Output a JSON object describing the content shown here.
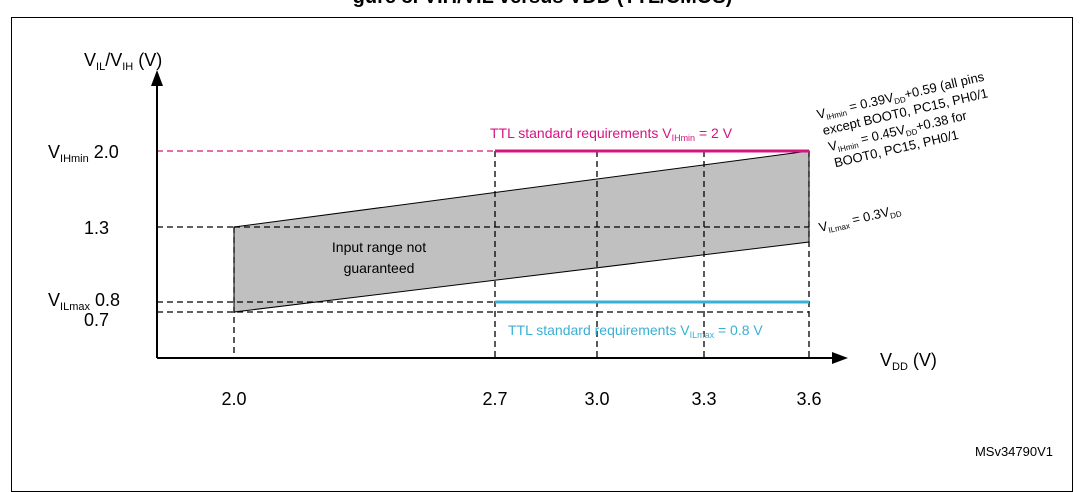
{
  "figure": {
    "caption": "gure 8. VIH/VIL versus VDD (TTL/CMOS)",
    "id_label": "MSv34790V1"
  },
  "colors": {
    "vih_line": "#d4147f",
    "vil_line": "#3ab0d4",
    "region_fill": "#c0c0c0",
    "axis": "#000000"
  },
  "chart_data": {
    "type": "area",
    "x_axis": {
      "label_main": "V",
      "label_sub": "DD",
      "label_unit": " (V)",
      "ticks": [
        2.0,
        2.7,
        3.0,
        3.3,
        3.6
      ],
      "tick_labels": [
        "2.0",
        "2.7",
        "3.0",
        "3.3",
        "3.6"
      ],
      "range": [
        1.15,
        3.75
      ]
    },
    "y_axis": {
      "label": "VIL/VIH (V)",
      "ticks": [
        2.0,
        1.3,
        0.8,
        0.7
      ],
      "tick_labels": [
        "VIHmin 2.0",
        "1.3",
        "VILmax 0.8",
        "0.7"
      ],
      "range": [
        0.28,
        2.5
      ]
    },
    "region": {
      "name": "Input range not guaranteed",
      "upper_x": [
        2.0,
        3.6
      ],
      "upper_y": [
        1.3,
        2.0
      ],
      "lower_x": [
        2.0,
        3.6
      ],
      "lower_y": [
        0.7,
        1.2
      ]
    },
    "series": [
      {
        "name": "TTL standard requirements VIHmin = 2 V",
        "x": [
          2.7,
          3.6
        ],
        "y": [
          2.0,
          2.0
        ]
      },
      {
        "name": "TTL standard requirements VILmax = 0.8 V",
        "x": [
          2.7,
          3.6
        ],
        "y": [
          0.8,
          0.8
        ]
      }
    ],
    "annotations": [
      "VIHmin = 0.39VDD+0.59 (all pins except BOOT0, PC15, PH0/1",
      "VIHmin = 0.45VDD+0.38 for BOOT0, PC15, PH0/1",
      "VILmax = 0.3VDD"
    ],
    "grid": false
  },
  "labels": {
    "y_axis_main": [
      "V",
      "IL",
      "/V",
      "IH",
      " (V)"
    ],
    "y_tick_vih": [
      "V",
      "IHmin",
      " 2.0"
    ],
    "y_tick_13": "1.3",
    "y_tick_vil": [
      "V",
      "ILmax",
      " 0.8"
    ],
    "y_tick_07": "0.7",
    "region_text": [
      "Input range not",
      "guaranteed"
    ],
    "vih_req": [
      "TTL standard  requirements V",
      "IHmin",
      " = 2 V"
    ],
    "vil_req": [
      "TTL standard  requirements V",
      "ILmax",
      " = 0.8 V"
    ],
    "note_line1": [
      "V",
      "IHmin",
      " = 0.39V",
      "DD",
      "+0.59 (all pins"
    ],
    "note_line2": "except BOOT0, PC15, PH0/1",
    "note_line3": [
      "V",
      "IHmin",
      " = 0.45V",
      "DD",
      "+0.38 for"
    ],
    "note_line4": "BOOT0,  PC15, PH0/1",
    "vil_formula": [
      "V",
      "ILmax",
      " = 0.3V",
      "DD"
    ]
  }
}
